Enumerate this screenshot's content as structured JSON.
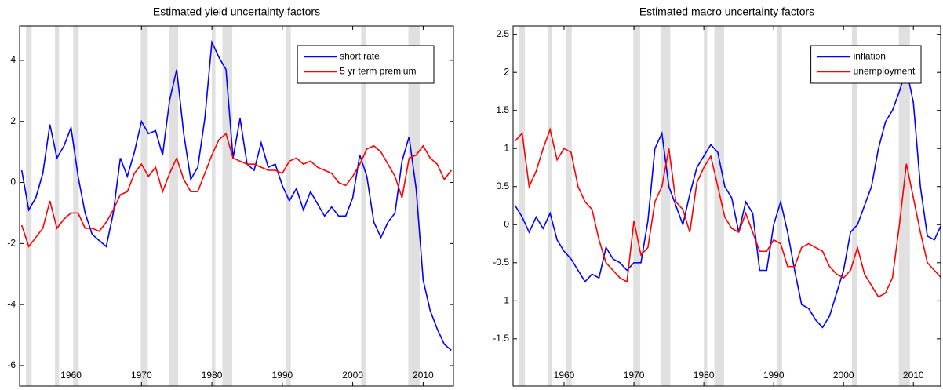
{
  "chart_data": [
    {
      "type": "line",
      "title": "Estimated yield uncertainty factors",
      "x": [
        1953,
        1954,
        1955,
        1956,
        1957,
        1958,
        1959,
        1960,
        1961,
        1962,
        1963,
        1964,
        1965,
        1966,
        1967,
        1968,
        1969,
        1970,
        1971,
        1972,
        1973,
        1974,
        1975,
        1976,
        1977,
        1978,
        1979,
        1980,
        1981,
        1982,
        1983,
        1984,
        1985,
        1986,
        1987,
        1988,
        1989,
        1990,
        1991,
        1992,
        1993,
        1994,
        1995,
        1996,
        1997,
        1998,
        1999,
        2000,
        2001,
        2002,
        2003,
        2004,
        2005,
        2006,
        2007,
        2008,
        2009,
        2010,
        2011,
        2012,
        2013,
        2014
      ],
      "series": [
        {
          "name": "short rate",
          "color": "#0000ff",
          "values": [
            0.4,
            -0.9,
            -0.5,
            0.3,
            1.9,
            0.8,
            1.2,
            1.8,
            0.2,
            -1.0,
            -1.7,
            -1.9,
            -2.1,
            -1.0,
            0.8,
            0.2,
            1.0,
            2.0,
            1.6,
            1.7,
            0.9,
            2.7,
            3.7,
            1.6,
            0.1,
            0.5,
            2.1,
            4.6,
            4.1,
            3.7,
            0.8,
            2.1,
            0.6,
            0.4,
            1.3,
            0.5,
            0.6,
            -0.1,
            -0.6,
            -0.2,
            -0.9,
            -0.3,
            -0.7,
            -1.1,
            -0.8,
            -1.1,
            -1.1,
            -0.5,
            0.9,
            0.2,
            -1.3,
            -1.8,
            -1.3,
            -1.0,
            0.7,
            1.5,
            -0.2,
            -3.2,
            -4.2,
            -4.8,
            -5.3,
            -5.5
          ]
        },
        {
          "name": "5 yr term premium",
          "color": "#ff0000",
          "values": [
            -1.4,
            -2.1,
            -1.8,
            -1.5,
            -0.6,
            -1.5,
            -1.2,
            -1.0,
            -1.0,
            -1.5,
            -1.5,
            -1.6,
            -1.3,
            -0.9,
            -0.4,
            -0.3,
            0.3,
            0.6,
            0.2,
            0.5,
            -0.3,
            0.3,
            0.8,
            0.1,
            -0.3,
            -0.3,
            0.3,
            0.9,
            1.4,
            1.6,
            0.8,
            0.7,
            0.6,
            0.6,
            0.5,
            0.4,
            0.4,
            0.3,
            0.7,
            0.8,
            0.6,
            0.7,
            0.5,
            0.4,
            0.3,
            0.0,
            -0.1,
            0.2,
            0.6,
            1.1,
            1.2,
            1.0,
            0.6,
            0.2,
            -0.5,
            0.8,
            0.9,
            1.2,
            0.8,
            0.6,
            0.1,
            0.4
          ]
        }
      ],
      "shaded_periods": [
        [
          1953.6,
          1954.4
        ],
        [
          1957.7,
          1958.3
        ],
        [
          1960.3,
          1961.1
        ],
        [
          1969.9,
          1970.9
        ],
        [
          1973.9,
          1975.2
        ],
        [
          1980.0,
          1980.5
        ],
        [
          1981.5,
          1982.9
        ],
        [
          1990.5,
          1991.2
        ],
        [
          2001.2,
          2001.9
        ],
        [
          2007.9,
          2009.5
        ]
      ],
      "shade_color": "#e0e0e0",
      "xlim": [
        1952.7,
        2014.3
      ],
      "xticks": [
        1960,
        1970,
        1980,
        1990,
        2000,
        2010
      ],
      "ylim": [
        -6.67,
        5.13
      ],
      "yticks": [
        -6,
        -4,
        -2,
        0,
        2,
        4
      ],
      "legend_loc": "northeast"
    },
    {
      "type": "line",
      "title": "Estimated macro uncertainty factors",
      "x": [
        1953,
        1954,
        1955,
        1956,
        1957,
        1958,
        1959,
        1960,
        1961,
        1962,
        1963,
        1964,
        1965,
        1966,
        1967,
        1968,
        1969,
        1970,
        1971,
        1972,
        1973,
        1974,
        1975,
        1976,
        1977,
        1978,
        1979,
        1980,
        1981,
        1982,
        1983,
        1984,
        1985,
        1986,
        1987,
        1988,
        1989,
        1990,
        1991,
        1992,
        1993,
        1994,
        1995,
        1996,
        1997,
        1998,
        1999,
        2000,
        2001,
        2002,
        2003,
        2004,
        2005,
        2006,
        2007,
        2008,
        2009,
        2010,
        2011,
        2012,
        2013,
        2014
      ],
      "series": [
        {
          "name": "inflation",
          "color": "#0000ff",
          "values": [
            0.25,
            0.1,
            -0.1,
            0.1,
            -0.05,
            0.15,
            -0.2,
            -0.35,
            -0.45,
            -0.6,
            -0.75,
            -0.65,
            -0.7,
            -0.3,
            -0.45,
            -0.5,
            -0.6,
            -0.5,
            -0.5,
            0.05,
            1.0,
            1.2,
            0.5,
            0.25,
            0.0,
            0.4,
            0.75,
            0.9,
            1.05,
            0.95,
            0.5,
            0.35,
            -0.1,
            0.3,
            0.15,
            -0.6,
            -0.6,
            0.0,
            0.3,
            -0.1,
            -0.6,
            -1.05,
            -1.1,
            -1.25,
            -1.35,
            -1.2,
            -0.9,
            -0.6,
            -0.1,
            0.0,
            0.25,
            0.5,
            1.0,
            1.35,
            1.5,
            1.75,
            2.05,
            1.6,
            0.5,
            -0.15,
            -0.2,
            0.0
          ]
        },
        {
          "name": "unemployment",
          "color": "#ff0000",
          "values": [
            1.1,
            1.2,
            0.5,
            0.7,
            1.0,
            1.25,
            0.85,
            1.0,
            0.95,
            0.5,
            0.3,
            0.2,
            -0.2,
            -0.5,
            -0.6,
            -0.7,
            -0.75,
            0.05,
            -0.4,
            -0.3,
            0.3,
            0.5,
            1.0,
            0.3,
            0.2,
            -0.1,
            0.55,
            0.75,
            0.9,
            0.5,
            0.1,
            -0.05,
            -0.1,
            0.15,
            -0.1,
            -0.35,
            -0.35,
            -0.2,
            -0.25,
            -0.55,
            -0.55,
            -0.3,
            -0.25,
            -0.3,
            -0.35,
            -0.55,
            -0.65,
            -0.7,
            -0.6,
            -0.3,
            -0.65,
            -0.8,
            -0.95,
            -0.9,
            -0.7,
            0.0,
            0.8,
            0.35,
            -0.1,
            -0.5,
            -0.6,
            -0.7
          ]
        }
      ],
      "shaded_periods": [
        [
          1953.6,
          1954.4
        ],
        [
          1957.7,
          1958.3
        ],
        [
          1960.3,
          1961.1
        ],
        [
          1969.9,
          1970.9
        ],
        [
          1973.9,
          1975.2
        ],
        [
          1980.0,
          1980.5
        ],
        [
          1981.5,
          1982.9
        ],
        [
          1990.5,
          1991.2
        ],
        [
          2001.2,
          2001.9
        ],
        [
          2007.9,
          2009.5
        ]
      ],
      "shade_color": "#e0e0e0",
      "xlim": [
        1952.7,
        2013.9
      ],
      "xticks": [
        1960,
        1970,
        1980,
        1990,
        2000,
        2010
      ],
      "ylim": [
        -2.12,
        2.61
      ],
      "yticks": [
        -1.5,
        -1,
        -0.5,
        0,
        0.5,
        1,
        1.5,
        2,
        2.5
      ],
      "legend_loc": "northeast"
    }
  ]
}
